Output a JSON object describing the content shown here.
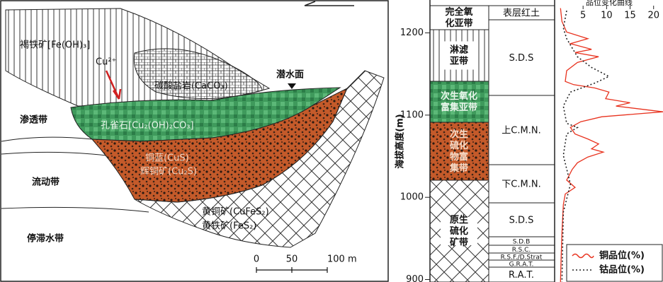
{
  "section": {
    "left": {
      "limonite": "褐铁矿[Fe(OH)₃]",
      "copper_ion": "Cu²⁺",
      "carbonate": "碳酸盐岩(CaCO₃)",
      "water_table": "潜水面",
      "vadose_zone": "渗透带",
      "malachite": "孔雀石[Cu₂(OH)₂CO₃]",
      "covellite": "铜蓝(CuS)",
      "chalcocite": "辉铜矿(Cu₂S)",
      "flow_zone": "流动带",
      "chalcopyrite": "黄铜矿(CuFeS₂)",
      "pyrite": "黄铁矿(FeS₂)",
      "stagnant_zone": "停滞水带",
      "scale": [
        "0",
        "50",
        "100 m"
      ]
    },
    "zones": [
      "完全氧化亚带",
      "淋滤亚带",
      "次生氧化富集亚带",
      "次生硫化物富集带",
      "原生硫化矿带"
    ],
    "lithology": [
      "表层红土",
      "S.D.S",
      "上C.M.N.",
      "下C.M.N.",
      "S.D.S",
      "S.D.B",
      "R.S.C.",
      "R.S.F./D.Strat",
      "G.R.A.T.",
      "R.A.T."
    ],
    "grade_chart": {
      "title": "品位变化曲线",
      "ylabel": "海拔高度(m)",
      "ylim": [
        897,
        1240
      ],
      "yticks": [
        900,
        1000,
        1100,
        1200
      ],
      "xlim": [
        0,
        22
      ],
      "xticks": [
        5,
        10,
        15,
        20
      ],
      "series": [
        {
          "name": "铜品位(%)",
          "color": "#e8321e",
          "elevation": [
            1230,
            1214,
            1201,
            1193,
            1187,
            1180,
            1176,
            1171,
            1164,
            1154,
            1141,
            1137,
            1133,
            1128,
            1120,
            1115,
            1111,
            1104,
            1098,
            1092,
            1085,
            1077,
            1071,
            1065,
            1059,
            1055,
            1049,
            1042,
            1034,
            1021,
            1012,
            1004,
            991,
            956,
            922,
            897
          ],
          "grade": [
            0.2,
            0.5,
            1.5,
            6,
            2.3,
            6.8,
            3.3,
            8.3,
            3.8,
            1.5,
            1.2,
            3,
            7.5,
            10.5,
            9.8,
            15,
            12,
            22,
            9,
            4.5,
            2.3,
            3.3,
            6,
            8.3,
            6.8,
            9.3,
            6,
            3.8,
            2.7,
            1.5,
            3.3,
            1.2,
            0.8,
            0.5,
            0.3,
            0.2
          ]
        },
        {
          "name": "钴品位(%)",
          "color": "#222222",
          "elevation": [
            1227,
            1206,
            1193,
            1171,
            1158,
            1147,
            1139,
            1128,
            1111,
            1090,
            1085,
            1077,
            1051,
            1016,
            982,
            897
          ],
          "grade": [
            1.5,
            0.8,
            1.5,
            3.8,
            6.8,
            10.5,
            7.5,
            2.3,
            0.8,
            1.5,
            3.8,
            1.5,
            0.8,
            2.3,
            0.8,
            0.5
          ]
        }
      ]
    }
  }
}
